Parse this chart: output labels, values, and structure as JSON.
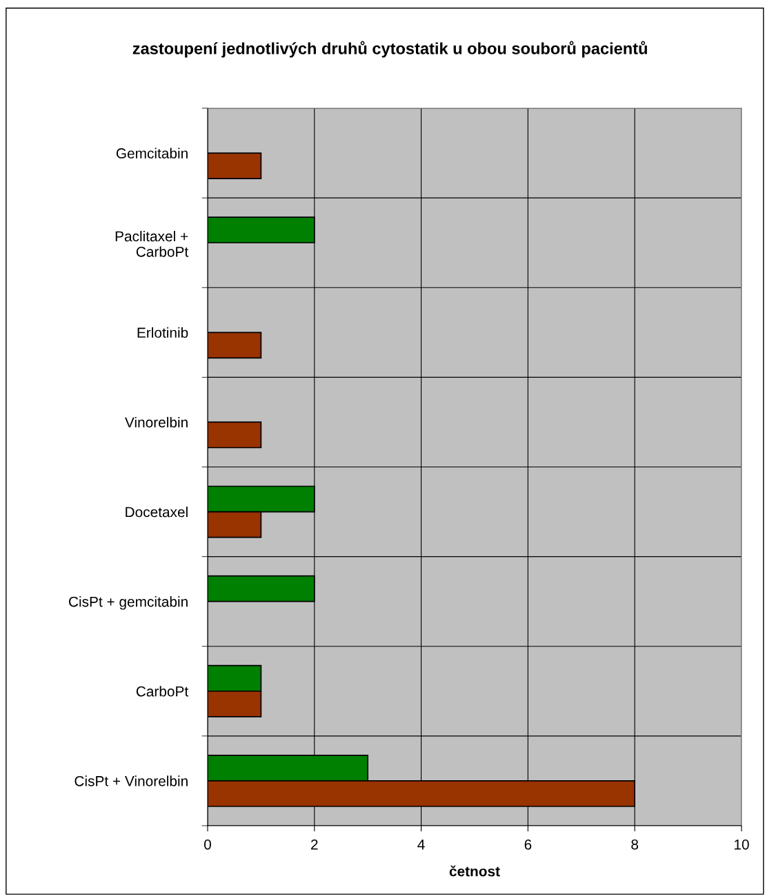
{
  "chart_data": {
    "type": "bar",
    "orientation": "horizontal",
    "title": "zastoupení jednotlivých druhů cytostatik u obou souborů pacientů",
    "xlabel": "četnost",
    "categories": [
      "Gemcitabin",
      "Paclitaxel +\nCarboPt",
      "Erlotinib",
      "Vinorelbin",
      "Docetaxel",
      "CisPt + gemcitabin",
      "CarboPt",
      "CisPt + Vinorelbin"
    ],
    "series": [
      {
        "color": "#008000",
        "values": [
          null,
          2,
          null,
          null,
          2,
          2,
          1,
          3
        ]
      },
      {
        "color": "#993300",
        "values": [
          1,
          null,
          1,
          1,
          1,
          null,
          1,
          8
        ]
      }
    ],
    "xlim": [
      0,
      10
    ],
    "xticks": [
      0,
      2,
      4,
      6,
      8,
      10
    ],
    "grid": true,
    "legend": false
  }
}
